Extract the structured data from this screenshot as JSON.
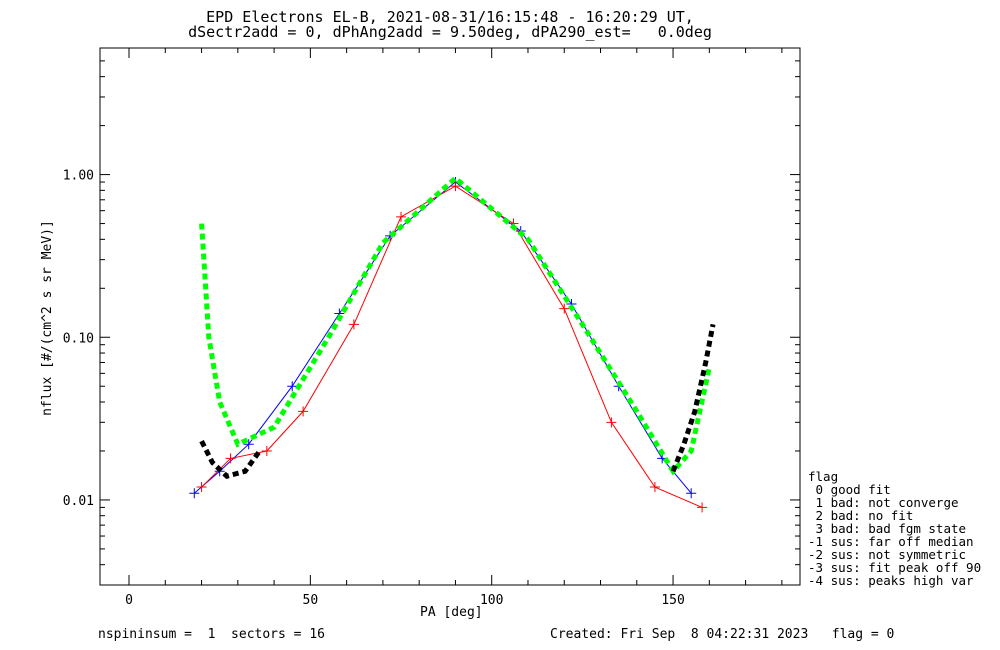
{
  "title": {
    "line1": "EPD Electrons EL-B, 2021-08-31/16:15:48 - 16:20:29 UT,",
    "line2": "dSectr2add = 0, dPhAng2add = 9.50deg, dPA290_est=   0.0deg"
  },
  "footer": {
    "left": "nspininsum =  1  sectors = 16",
    "right": "Created: Fri Sep  8 04:22:31 2023   flag = 0"
  },
  "legend": {
    "title": "flag",
    "items": [
      " 0 good fit",
      " 1 bad: not converge",
      " 2 bad: no fit",
      " 3 bad: bad fgm state",
      "-1 sus: far off median",
      "-2 sus: not symmetric",
      "-3 sus: fit peak off 90",
      "-4 sus: peaks high var"
    ]
  },
  "chart_data": {
    "type": "line",
    "title": "EPD Electrons EL-B, 2021-08-31/16:15:48 - 16:20:29 UT, dSectr2add = 0, dPhAng2add = 9.50deg, dPA290_est=   0.0deg",
    "xlabel": "PA [deg]",
    "ylabel": "nflux [#/(cm^2 s sr MeV)]",
    "xlim": [
      -8,
      185
    ],
    "ylim": [
      0.003,
      6.0
    ],
    "yscale": "log",
    "xticks": [
      0,
      50,
      100,
      150
    ],
    "yticks": [
      0.01,
      0.1,
      1.0
    ],
    "ytick_labels": [
      "0.01",
      "0.10",
      "1.00"
    ],
    "grid": false,
    "series": [
      {
        "color": "#0000ff",
        "marker": "+",
        "x": [
          18,
          25,
          33,
          45,
          58,
          72,
          90,
          108,
          122,
          135,
          147,
          155
        ],
        "y": [
          0.011,
          0.015,
          0.022,
          0.05,
          0.14,
          0.42,
          0.9,
          0.45,
          0.16,
          0.05,
          0.018,
          0.011
        ]
      },
      {
        "color": "#ff0000",
        "marker": "+",
        "x": [
          20,
          28,
          38,
          48,
          62,
          75,
          90,
          106,
          120,
          133,
          145,
          158
        ],
        "y": [
          0.012,
          0.018,
          0.02,
          0.035,
          0.12,
          0.55,
          0.85,
          0.5,
          0.15,
          0.03,
          0.012,
          0.009
        ]
      },
      {
        "color": "#00ff00",
        "style": "dashed",
        "x": [
          20,
          22,
          25,
          30,
          40,
          55,
          70,
          90,
          110,
          125,
          140,
          150,
          155,
          160
        ],
        "y": [
          0.5,
          0.1,
          0.04,
          0.022,
          0.028,
          0.1,
          0.38,
          0.95,
          0.4,
          0.12,
          0.035,
          0.015,
          0.02,
          0.065
        ]
      },
      {
        "color": "#000000",
        "style": "dashed",
        "x": [
          20,
          23,
          27,
          32,
          36
        ],
        "y": [
          0.023,
          0.017,
          0.014,
          0.015,
          0.02
        ]
      },
      {
        "color": "#000000",
        "style": "dashed",
        "x": [
          150,
          153,
          156,
          159,
          161
        ],
        "y": [
          0.015,
          0.022,
          0.035,
          0.07,
          0.12
        ]
      }
    ]
  }
}
